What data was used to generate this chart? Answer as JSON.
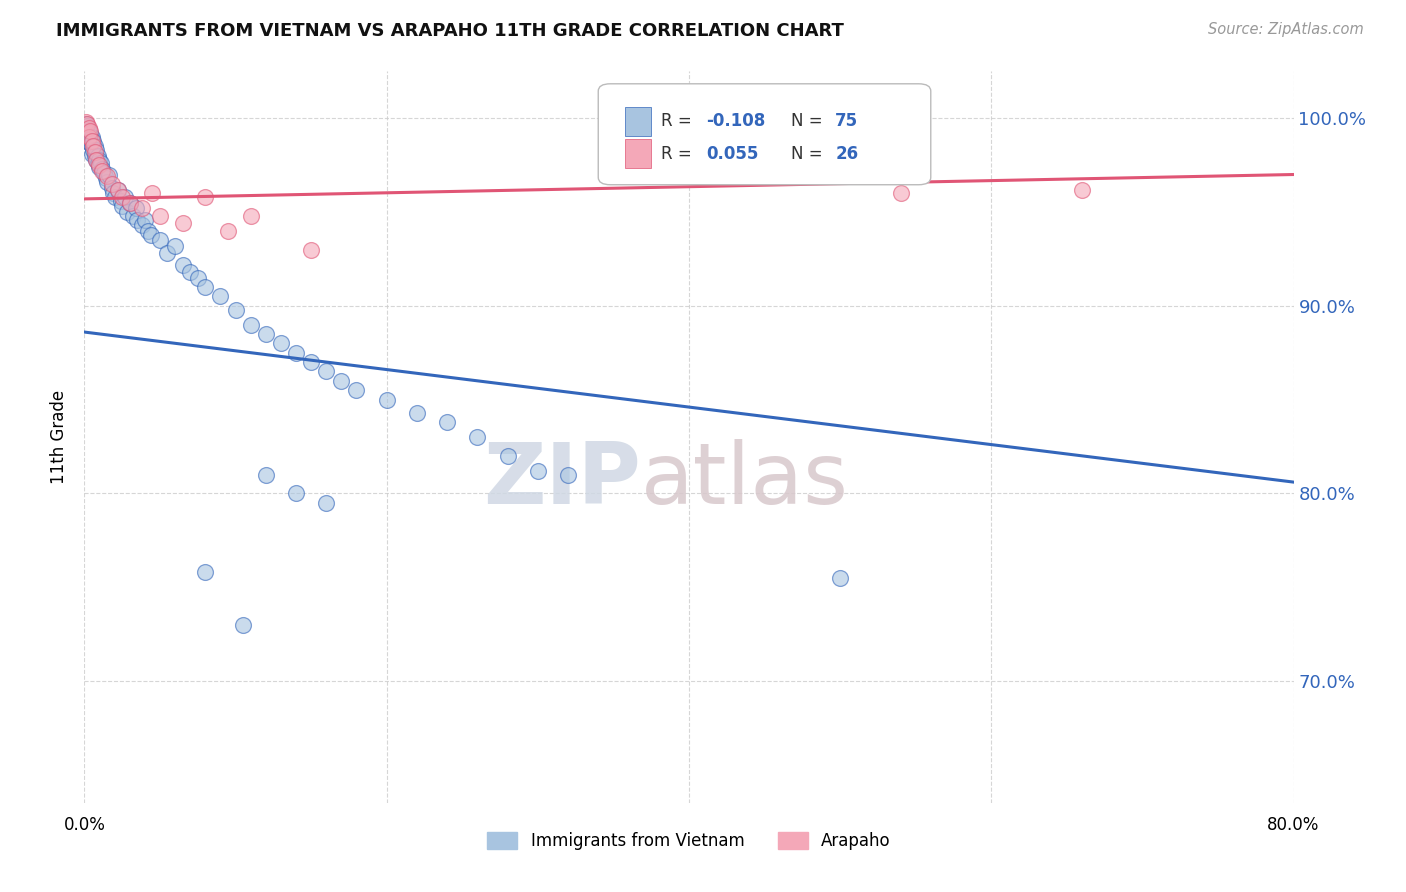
{
  "title": "IMMIGRANTS FROM VIETNAM VS ARAPAHO 11TH GRADE CORRELATION CHART",
  "source": "Source: ZipAtlas.com",
  "ylabel": "11th Grade",
  "ytick_values": [
    0.7,
    0.8,
    0.9,
    1.0
  ],
  "legend1_label": "Immigrants from Vietnam",
  "legend2_label": "Arapaho",
  "R1": "-0.108",
  "N1": "75",
  "R2": "0.055",
  "N2": "26",
  "blue_color": "#A8C4E0",
  "pink_color": "#F4A8B8",
  "trendline_blue": "#3366BB",
  "trendline_pink": "#E05575",
  "blue_scatter": [
    [
      0.001,
      0.997
    ],
    [
      0.001,
      0.993
    ],
    [
      0.001,
      0.99
    ],
    [
      0.002,
      0.996
    ],
    [
      0.002,
      0.991
    ],
    [
      0.002,
      0.988
    ],
    [
      0.003,
      0.994
    ],
    [
      0.003,
      0.989
    ],
    [
      0.004,
      0.992
    ],
    [
      0.004,
      0.987
    ],
    [
      0.005,
      0.99
    ],
    [
      0.005,
      0.985
    ],
    [
      0.005,
      0.981
    ],
    [
      0.006,
      0.988
    ],
    [
      0.006,
      0.983
    ],
    [
      0.007,
      0.985
    ],
    [
      0.007,
      0.98
    ],
    [
      0.008,
      0.983
    ],
    [
      0.008,
      0.978
    ],
    [
      0.009,
      0.98
    ],
    [
      0.009,
      0.976
    ],
    [
      0.01,
      0.978
    ],
    [
      0.01,
      0.974
    ],
    [
      0.011,
      0.976
    ],
    [
      0.012,
      0.973
    ],
    [
      0.013,
      0.971
    ],
    [
      0.014,
      0.968
    ],
    [
      0.015,
      0.966
    ],
    [
      0.016,
      0.97
    ],
    [
      0.018,
      0.963
    ],
    [
      0.019,
      0.96
    ],
    [
      0.02,
      0.958
    ],
    [
      0.022,
      0.962
    ],
    [
      0.024,
      0.956
    ],
    [
      0.025,
      0.953
    ],
    [
      0.027,
      0.958
    ],
    [
      0.028,
      0.95
    ],
    [
      0.03,
      0.955
    ],
    [
      0.032,
      0.948
    ],
    [
      0.034,
      0.952
    ],
    [
      0.035,
      0.946
    ],
    [
      0.038,
      0.943
    ],
    [
      0.04,
      0.946
    ],
    [
      0.042,
      0.94
    ],
    [
      0.044,
      0.938
    ],
    [
      0.05,
      0.935
    ],
    [
      0.055,
      0.928
    ],
    [
      0.06,
      0.932
    ],
    [
      0.065,
      0.922
    ],
    [
      0.07,
      0.918
    ],
    [
      0.075,
      0.915
    ],
    [
      0.08,
      0.91
    ],
    [
      0.09,
      0.905
    ],
    [
      0.1,
      0.898
    ],
    [
      0.11,
      0.89
    ],
    [
      0.12,
      0.885
    ],
    [
      0.13,
      0.88
    ],
    [
      0.14,
      0.875
    ],
    [
      0.15,
      0.87
    ],
    [
      0.16,
      0.865
    ],
    [
      0.17,
      0.86
    ],
    [
      0.18,
      0.855
    ],
    [
      0.2,
      0.85
    ],
    [
      0.22,
      0.843
    ],
    [
      0.24,
      0.838
    ],
    [
      0.26,
      0.83
    ],
    [
      0.28,
      0.82
    ],
    [
      0.3,
      0.812
    ],
    [
      0.32,
      0.81
    ],
    [
      0.08,
      0.758
    ],
    [
      0.105,
      0.73
    ],
    [
      0.12,
      0.81
    ],
    [
      0.14,
      0.8
    ],
    [
      0.16,
      0.795
    ],
    [
      0.5,
      0.755
    ]
  ],
  "pink_scatter": [
    [
      0.001,
      0.998
    ],
    [
      0.002,
      0.997
    ],
    [
      0.003,
      0.995
    ],
    [
      0.003,
      0.99
    ],
    [
      0.004,
      0.993
    ],
    [
      0.005,
      0.988
    ],
    [
      0.006,
      0.985
    ],
    [
      0.007,
      0.982
    ],
    [
      0.008,
      0.978
    ],
    [
      0.01,
      0.975
    ],
    [
      0.012,
      0.972
    ],
    [
      0.015,
      0.969
    ],
    [
      0.018,
      0.965
    ],
    [
      0.022,
      0.962
    ],
    [
      0.025,
      0.958
    ],
    [
      0.03,
      0.955
    ],
    [
      0.038,
      0.952
    ],
    [
      0.045,
      0.96
    ],
    [
      0.05,
      0.948
    ],
    [
      0.065,
      0.944
    ],
    [
      0.08,
      0.958
    ],
    [
      0.095,
      0.94
    ],
    [
      0.11,
      0.948
    ],
    [
      0.15,
      0.93
    ],
    [
      0.54,
      0.96
    ],
    [
      0.66,
      0.962
    ]
  ],
  "watermark_zip": "ZIP",
  "watermark_atlas": "atlas",
  "xlim": [
    0.0,
    0.8
  ],
  "ylim": [
    0.635,
    1.025
  ],
  "background_color": "#FFFFFF",
  "grid_color": "#CCCCCC",
  "blue_trendline_points": [
    [
      0.0,
      0.886
    ],
    [
      0.8,
      0.806
    ]
  ],
  "pink_trendline_points": [
    [
      0.0,
      0.957
    ],
    [
      0.8,
      0.97
    ]
  ]
}
